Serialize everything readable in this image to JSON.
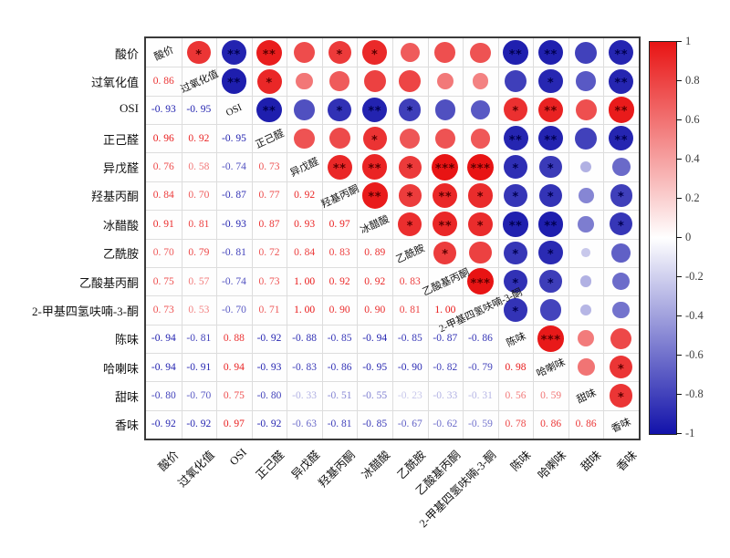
{
  "chart_data": {
    "type": "heatmap",
    "subtype": "correlation-matrix",
    "title": "",
    "variables": [
      "酸价",
      "过氧化值",
      "OSI",
      "正己醛",
      "异戊醛",
      "羟基丙酮",
      "冰醋酸",
      "乙酰胺",
      "乙酸基丙酮",
      "2-甲基四氢呋喃-3-酮",
      "陈味",
      "哈喇味",
      "甜味",
      "香味"
    ],
    "lower_triangle_values": [
      [],
      [
        0.86
      ],
      [
        -0.93,
        -0.95
      ],
      [
        0.96,
        0.92,
        -0.95
      ],
      [
        0.76,
        0.58,
        -0.74,
        0.73
      ],
      [
        0.84,
        0.7,
        -0.87,
        0.77,
        0.92
      ],
      [
        0.91,
        0.81,
        -0.93,
        0.87,
        0.93,
        0.97
      ],
      [
        0.7,
        0.79,
        -0.81,
        0.72,
        0.84,
        0.83,
        0.89
      ],
      [
        0.75,
        0.57,
        -0.74,
        0.73,
        1.0,
        0.92,
        0.92,
        0.83
      ],
      [
        0.73,
        0.53,
        -0.7,
        0.71,
        1.0,
        0.9,
        0.9,
        0.81,
        1.0
      ],
      [
        -0.94,
        -0.81,
        0.88,
        -0.92,
        -0.88,
        -0.85,
        -0.94,
        -0.85,
        -0.87,
        -0.86
      ],
      [
        -0.94,
        -0.91,
        0.94,
        -0.93,
        -0.83,
        -0.86,
        -0.95,
        -0.9,
        -0.82,
        -0.79,
        0.98
      ],
      [
        -0.8,
        -0.7,
        0.75,
        -0.8,
        -0.33,
        -0.51,
        -0.55,
        -0.23,
        -0.33,
        -0.31,
        0.56,
        0.59
      ],
      [
        -0.92,
        -0.92,
        0.97,
        -0.92,
        -0.63,
        -0.81,
        -0.85,
        -0.67,
        -0.62,
        -0.59,
        0.78,
        0.86,
        0.86
      ]
    ],
    "significance_stars": {
      "0,1": "*",
      "0,2": "**",
      "0,3": "**",
      "0,5": "*",
      "0,6": "*",
      "0,10": "**",
      "0,11": "**",
      "0,13": "**",
      "1,2": "**",
      "1,3": "*",
      "1,11": "*",
      "1,13": "**",
      "2,3": "**",
      "2,5": "*",
      "2,6": "**",
      "2,7": "*",
      "2,10": "*",
      "2,11": "**",
      "2,13": "**",
      "3,6": "*",
      "3,10": "**",
      "3,11": "**",
      "3,13": "**",
      "4,5": "**",
      "4,6": "**",
      "4,7": "*",
      "4,8": "***",
      "4,9": "***",
      "4,10": "*",
      "4,11": "*",
      "5,6": "**",
      "5,7": "*",
      "5,8": "**",
      "5,9": "*",
      "5,10": "*",
      "5,11": "*",
      "5,13": "*",
      "6,7": "*",
      "6,8": "**",
      "6,9": "*",
      "6,10": "**",
      "6,11": "**",
      "6,13": "*",
      "7,8": "*",
      "7,10": "*",
      "7,11": "*",
      "8,9": "***",
      "8,10": "*",
      "8,11": "*",
      "9,10": "*",
      "10,11": "***",
      "11,13": "*",
      "12,13": "*"
    },
    "colorbar": {
      "tick_labels": [
        "1",
        "0.8",
        "0.6",
        "0.4",
        "0.2",
        "0",
        "-0.2",
        "-0.4",
        "-0.6",
        "-0.8",
        "-1"
      ],
      "max": 1,
      "min": -1,
      "position": "right"
    },
    "colors": {
      "positive": "#e81414",
      "negative": "#1212aa",
      "zero": "#ffffff",
      "star_positive": "#5c0000",
      "star_negative": "#000050",
      "frame": "#3a3a3a",
      "grid": "#dddddd"
    },
    "layout": {
      "grid": true,
      "diagonal_labels": true,
      "lower_triangle": "numbers",
      "upper_triangle": "circles"
    }
  }
}
